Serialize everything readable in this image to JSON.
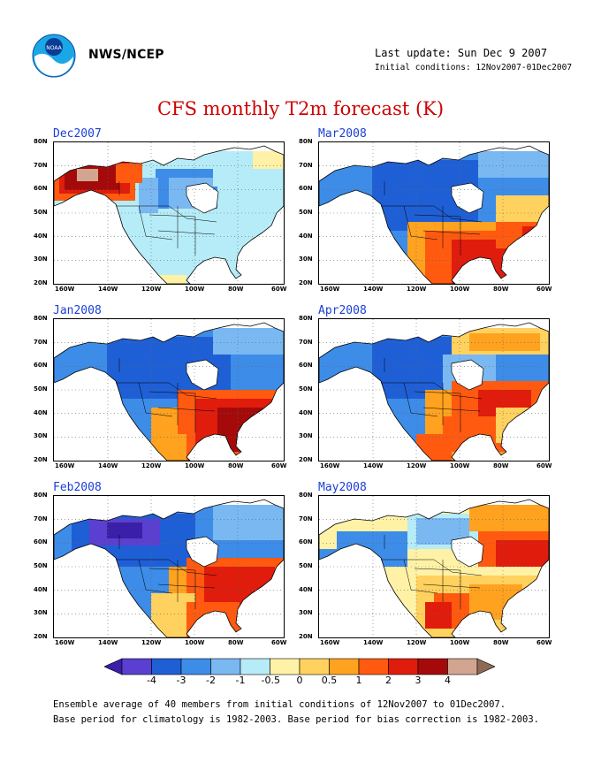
{
  "header": {
    "org": "NWS/NCEP",
    "last_update": "Last update: Sun Dec  9 2007",
    "initial_conditions": "Initial conditions: 12Nov2007-01Dec2007",
    "title": "CFS monthly T2m forecast (K)"
  },
  "logo": {
    "name": "noaa-logo",
    "text": "NOAA"
  },
  "axes": {
    "lat_labels": [
      "80N",
      "70N",
      "60N",
      "50N",
      "40N",
      "30N",
      "20N"
    ],
    "lon_labels": [
      "160W",
      "140W",
      "120W",
      "100W",
      "80W",
      "60W"
    ]
  },
  "panels": [
    {
      "label": "Dec2007",
      "pattern": "dec"
    },
    {
      "label": "Mar2008",
      "pattern": "mar"
    },
    {
      "label": "Jan2008",
      "pattern": "jan"
    },
    {
      "label": "Apr2008",
      "pattern": "apr"
    },
    {
      "label": "Feb2008",
      "pattern": "feb"
    },
    {
      "label": "May2008",
      "pattern": "may"
    }
  ],
  "colorbar": {
    "colors": [
      "#3a1fa8",
      "#5a3fd0",
      "#1f5fd6",
      "#3d8ce8",
      "#7ab8f2",
      "#b6ecf8",
      "#fff2a6",
      "#ffd15e",
      "#ffa220",
      "#ff5a10",
      "#e01c0c",
      "#a50a0a",
      "#d2a590",
      "#8e6a56"
    ],
    "labels": [
      "-4",
      "-3",
      "-2",
      "-1",
      "-0.5",
      "0",
      "0.5",
      "1",
      "2",
      "3",
      "4"
    ]
  },
  "footer": {
    "line1": "Ensemble average of 40 members from initial conditions of 12Nov2007 to 01Dec2007.",
    "line2": "Base period for climatology is 1982-2003. Base period for bias correction is 1982-2003."
  }
}
